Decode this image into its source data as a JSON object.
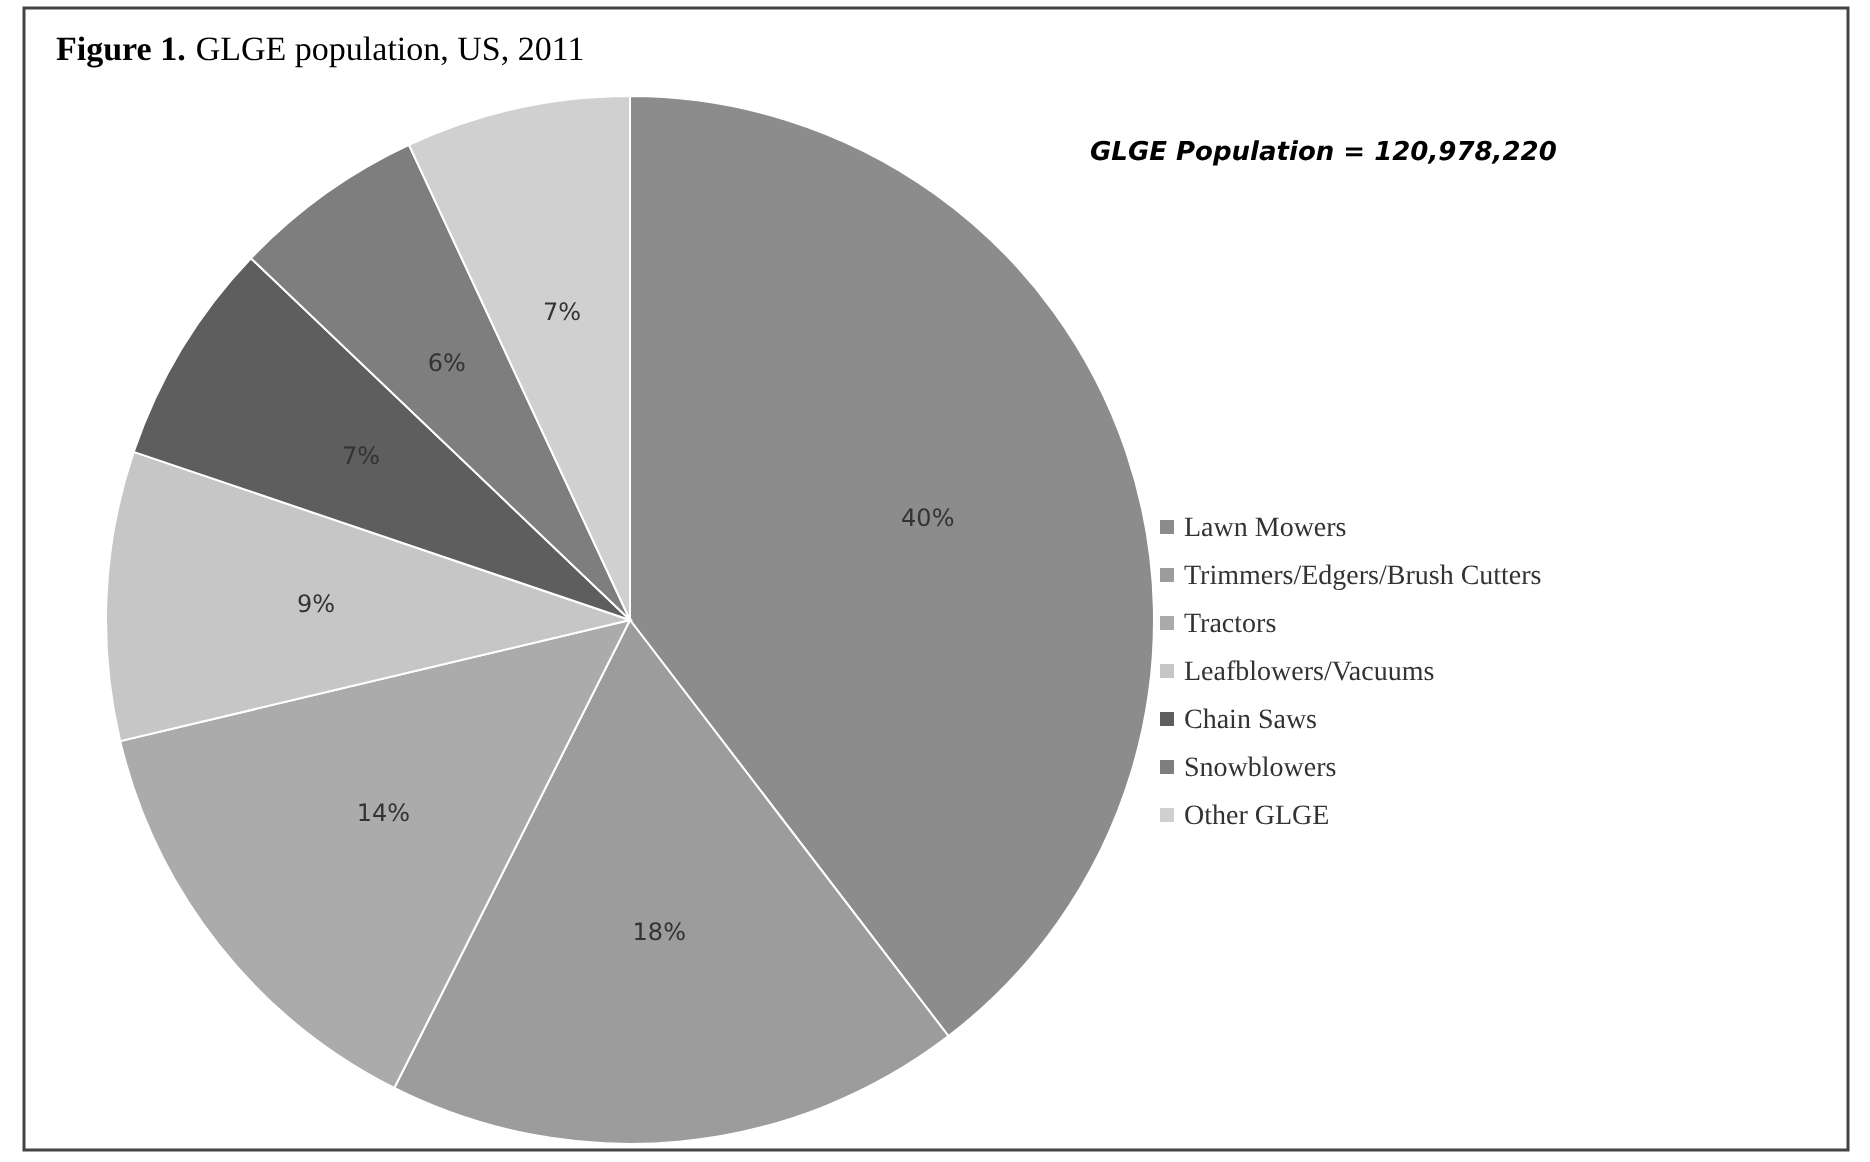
{
  "chart_data": {
    "type": "pie",
    "title": "Figure 1.",
    "subtitle": "GLGE population, US, 2011",
    "annotations": [
      "GLGE Population = 120,978,220"
    ],
    "categories": [
      "Lawn Mowers",
      "Trimmers/Edgers/Brush Cutters",
      "Tractors",
      "Leafblowers/Vacuums",
      "Chain Saws",
      "Snowblowers",
      "Other GLGE"
    ],
    "values": [
      40,
      18,
      14,
      9,
      7,
      6,
      7
    ],
    "value_labels": [
      "40%",
      "18%",
      "14%",
      "9%",
      "7%",
      "6%",
      "7%"
    ],
    "colors": [
      "#8c8c8c",
      "#9c9c9c",
      "#ababab",
      "#c6c6c6",
      "#5e5e5e",
      "#7e7e7e",
      "#d0d0d0"
    ],
    "legend": "right"
  }
}
